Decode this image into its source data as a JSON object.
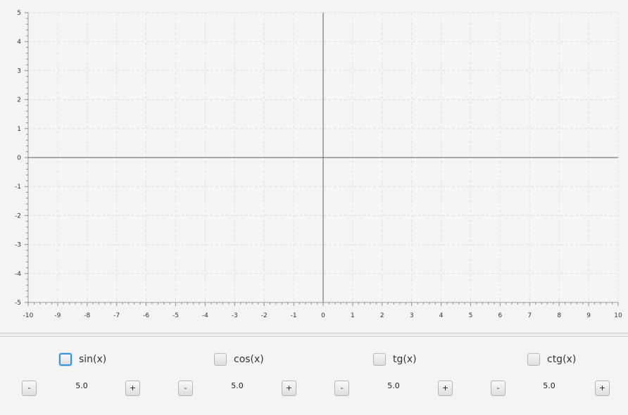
{
  "graph": {
    "x_ticks": [
      "-10",
      "-9",
      "-8",
      "-7",
      "-6",
      "-5",
      "-4",
      "-3",
      "-2",
      "-1",
      "0",
      "1",
      "2",
      "3",
      "4",
      "5",
      "6",
      "7",
      "8",
      "9",
      "10"
    ],
    "y_ticks": [
      "5",
      "4",
      "3",
      "2",
      "1",
      "0",
      "-1",
      "-2",
      "-3",
      "-4",
      "-5"
    ],
    "xlim": [
      -10,
      10
    ],
    "ylim": [
      -5,
      5
    ],
    "grid": true
  },
  "controls": [
    {
      "label": "sin(x)",
      "checked": false,
      "focused": true,
      "minus": "-",
      "plus": "+",
      "value": "5.0"
    },
    {
      "label": "cos(x)",
      "checked": false,
      "focused": false,
      "minus": "-",
      "plus": "+",
      "value": "5.0"
    },
    {
      "label": "tg(x)",
      "checked": false,
      "focused": false,
      "minus": "-",
      "plus": "+",
      "value": "5.0"
    },
    {
      "label": "ctg(x)",
      "checked": false,
      "focused": false,
      "minus": "-",
      "plus": "+",
      "value": "5.0"
    }
  ],
  "colors": {
    "axis": "#5a5a5a",
    "grid": "#dedede",
    "focus": "#3c93d4"
  }
}
